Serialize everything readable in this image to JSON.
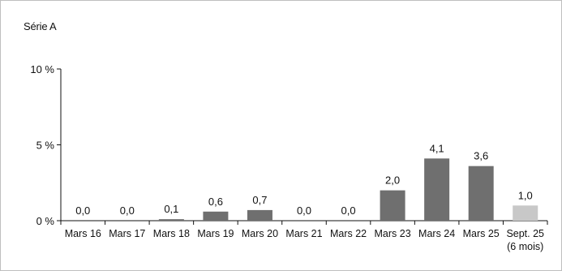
{
  "chart_data": {
    "type": "bar",
    "title": "Série A",
    "categories": [
      [
        "Mars 16"
      ],
      [
        "Mars 17"
      ],
      [
        "Mars 18"
      ],
      [
        "Mars 19"
      ],
      [
        "Mars 20"
      ],
      [
        "Mars 21"
      ],
      [
        "Mars 22"
      ],
      [
        "Mars 23"
      ],
      [
        "Mars 24"
      ],
      [
        "Mars 25"
      ],
      [
        "Sept. 25",
        "(6 mois)"
      ]
    ],
    "values": [
      0.0,
      0.0,
      0.1,
      0.6,
      0.7,
      0.0,
      0.0,
      2.0,
      4.1,
      3.6,
      1.0
    ],
    "data_labels": [
      "0,0",
      "0,0",
      "0,1",
      "0,6",
      "0,7",
      "0,0",
      "0,0",
      "2,0",
      "4,1",
      "3,6",
      "1,0"
    ],
    "ylim": [
      0,
      10
    ],
    "yticks": [
      {
        "value": 0,
        "label": "0 %"
      },
      {
        "value": 5,
        "label": "5 %"
      },
      {
        "value": 10,
        "label": "10 %"
      }
    ],
    "colors": {
      "bar": "#6f6f6f",
      "bar_highlight": "#c8c8c8",
      "axis": "#111111",
      "frame": "#bfbfbf"
    },
    "highlight_index": 10,
    "grid": false,
    "legend": "none"
  }
}
